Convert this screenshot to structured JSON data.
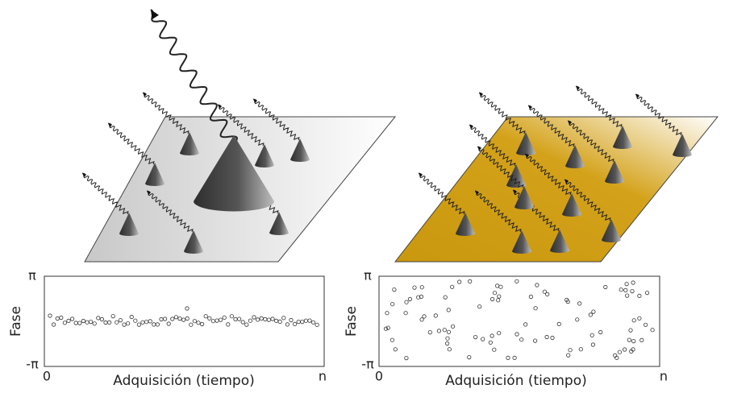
{
  "panels": [
    {
      "y_axis": {
        "top": "π",
        "bottom": "-π",
        "label": "Fase"
      },
      "x_axis": {
        "start": "0",
        "end": "n",
        "label": "Adquisición (tiempo)"
      }
    },
    {
      "y_axis": {
        "top": "π",
        "bottom": "-π",
        "label": "Fase"
      },
      "x_axis": {
        "start": "0",
        "end": "n",
        "label": "Adquisición (tiempo)"
      }
    }
  ]
}
